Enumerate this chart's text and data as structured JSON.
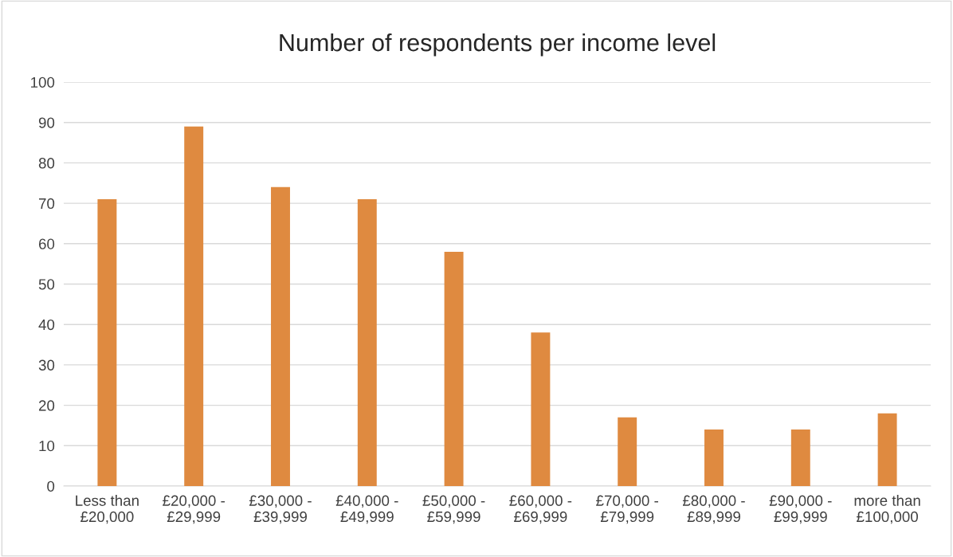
{
  "chart_data": {
    "type": "bar",
    "title": "Number of respondents per income level",
    "categories": [
      "Less than\n£20,000",
      "£20,000 -\n£29,999",
      "£30,000 -\n£39,999",
      "£40,000 -\n£49,999",
      "£50,000 -\n£59,999",
      "£60,000 -\n£69,999",
      "£70,000 -\n£79,999",
      "£80,000 -\n£89,999",
      "£90,000 -\n£99,999",
      "more than\n£100,000"
    ],
    "values": [
      71,
      89,
      74,
      71,
      58,
      38,
      17,
      14,
      14,
      18
    ],
    "color": "#df8a40",
    "ylim": [
      0,
      100
    ],
    "yticks": [
      0,
      10,
      20,
      30,
      40,
      50,
      60,
      70,
      80,
      90,
      100
    ],
    "grid": "y",
    "legend": false
  }
}
